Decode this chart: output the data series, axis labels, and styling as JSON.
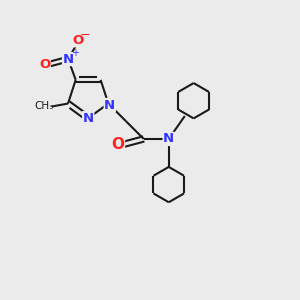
{
  "background_color": "#ebebeb",
  "bond_color": "#1a1a1a",
  "N_color": "#3333ff",
  "O_color": "#ff2020",
  "line_width": 1.5,
  "figsize": [
    3.0,
    3.0
  ],
  "dpi": 100,
  "xlim": [
    0,
    10
  ],
  "ylim": [
    0,
    10
  ]
}
